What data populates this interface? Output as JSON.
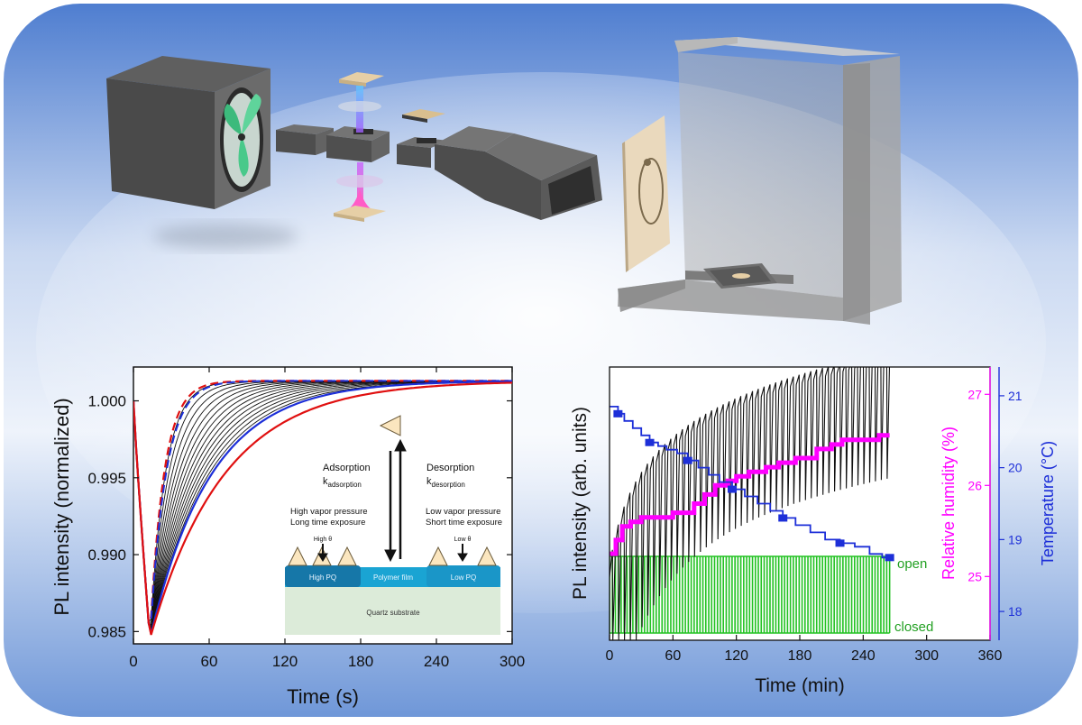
{
  "chart_data": [
    {
      "type": "line",
      "xlabel": "Time (s)",
      "ylabel": "PL intensity (normalized)",
      "xlim": [
        0,
        300
      ],
      "ylim": [
        0.9842,
        1.0022
      ],
      "xticks": [
        0,
        60,
        120,
        180,
        240,
        300
      ],
      "yticks": [
        0.985,
        0.99,
        0.995,
        1.0
      ],
      "ytick_labels": [
        "0.985",
        "0.990",
        "0.995",
        "1.000"
      ],
      "colors": {
        "red": "#e01010",
        "blue": "#1d2fd8",
        "black": "#111111"
      },
      "curve_model": {
        "min_time_s": 13,
        "min_value": 0.9845,
        "end_value": 1.0013
      },
      "inset": {
        "adsorption_label": "Adsorption",
        "adsorption_k": "k",
        "adsorption_sub": "adsorption",
        "desorption_label": "Desorption",
        "desorption_k": "k",
        "desorption_sub": "desorption",
        "high_line1": "High vapor pressure",
        "high_line2": "Long time exposure",
        "low_line1": "Low vapor pressure",
        "low_line2": "Short time exposure",
        "high_theta": "High  θ",
        "low_theta": "Low  θ",
        "high_pq": "High  PQ",
        "polymer_film": "Polymer film",
        "low_pq": "Low  PQ",
        "quartz": "Quartz substrate"
      }
    },
    {
      "type": "line",
      "xlabel": "Time (min)",
      "ylabel_left": "PL intensity (arb. units)",
      "ylabel_right1": "Relative humidity (%)",
      "ylabel_right2": "Temperature (°C)",
      "xlim": [
        0,
        360
      ],
      "xticks": [
        0,
        60,
        120,
        180,
        240,
        300,
        360
      ],
      "rh_ticks": [
        25,
        26,
        27
      ],
      "temp_ticks": [
        18,
        19,
        20,
        21
      ],
      "rh_range": [
        24.3,
        27.3
      ],
      "temp_range": [
        17.6,
        21.4
      ],
      "valve_open_label": "open",
      "valve_closed_label": "closed",
      "colors": {
        "pl": "#111111",
        "rh": "#ff00ff",
        "temp": "#1d2fd8",
        "valve": "#22c222"
      },
      "pl_cycles": 48,
      "duration_min": 265,
      "temperature_steps": [
        [
          0,
          20.85
        ],
        [
          8,
          20.75
        ],
        [
          14,
          20.65
        ],
        [
          22,
          20.55
        ],
        [
          30,
          20.45
        ],
        [
          38,
          20.35
        ],
        [
          46,
          20.3
        ],
        [
          54,
          20.25
        ],
        [
          64,
          20.2
        ],
        [
          74,
          20.1
        ],
        [
          84,
          20.0
        ],
        [
          94,
          19.9
        ],
        [
          104,
          19.8
        ],
        [
          116,
          19.7
        ],
        [
          128,
          19.6
        ],
        [
          140,
          19.5
        ],
        [
          152,
          19.4
        ],
        [
          164,
          19.3
        ],
        [
          176,
          19.2
        ],
        [
          190,
          19.1
        ],
        [
          204,
          19.0
        ],
        [
          218,
          18.95
        ],
        [
          232,
          18.9
        ],
        [
          246,
          18.8
        ],
        [
          258,
          18.75
        ],
        [
          265,
          18.75
        ]
      ],
      "humidity_steps": [
        [
          0,
          25.25
        ],
        [
          6,
          25.4
        ],
        [
          12,
          25.55
        ],
        [
          20,
          25.6
        ],
        [
          30,
          25.65
        ],
        [
          60,
          25.7
        ],
        [
          80,
          25.8
        ],
        [
          90,
          25.9
        ],
        [
          100,
          26.0
        ],
        [
          112,
          26.05
        ],
        [
          120,
          26.1
        ],
        [
          132,
          26.15
        ],
        [
          148,
          26.2
        ],
        [
          160,
          26.25
        ],
        [
          176,
          26.3
        ],
        [
          196,
          26.4
        ],
        [
          210,
          26.45
        ],
        [
          220,
          26.5
        ],
        [
          230,
          26.5
        ],
        [
          255,
          26.55
        ],
        [
          265,
          26.55
        ]
      ]
    }
  ]
}
